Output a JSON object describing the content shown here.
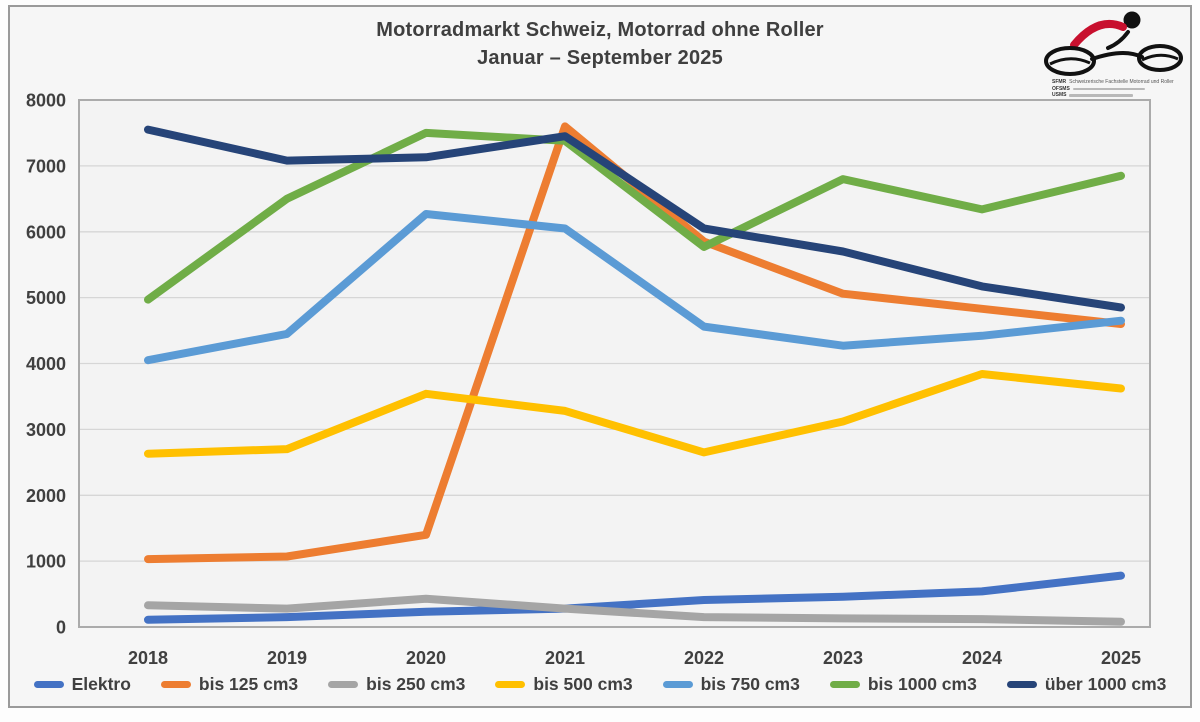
{
  "header": {
    "title_line1": "Motorradmarkt Schweiz, Motorrad ohne Roller",
    "title_line2": "Januar – September 2025"
  },
  "logo": {
    "acronym1": "SFMR",
    "text1": "Schweizerische Fachstelle Motorrad und Roller",
    "acronym2": "OFSMS",
    "acronym3": "USMS"
  },
  "chart_data": {
    "type": "line",
    "title": "Motorradmarkt Schweiz, Motorrad ohne Roller — Januar – September 2025",
    "categories": [
      "2018",
      "2019",
      "2020",
      "2021",
      "2022",
      "2023",
      "2024",
      "2025"
    ],
    "series": [
      {
        "name": "Elektro",
        "color": "#4472C4",
        "values": [
          110,
          150,
          230,
          280,
          410,
          460,
          540,
          780
        ]
      },
      {
        "name": "bis 125 cm3",
        "color": "#ED7D31",
        "values": [
          1030,
          1070,
          1400,
          7600,
          5850,
          5060,
          4830,
          4600
        ]
      },
      {
        "name": "bis 250 cm3",
        "color": "#A5A5A5",
        "values": [
          330,
          280,
          430,
          280,
          150,
          130,
          120,
          80
        ]
      },
      {
        "name": "bis 500 cm3",
        "color": "#FFC000",
        "values": [
          2630,
          2700,
          3540,
          3280,
          2650,
          3120,
          3840,
          3620
        ]
      },
      {
        "name": "bis 750 cm3",
        "color": "#5B9BD5",
        "values": [
          4050,
          4450,
          6270,
          6050,
          4560,
          4270,
          4420,
          4650
        ]
      },
      {
        "name": "bis 1000 cm3",
        "color": "#70AD47",
        "values": [
          4970,
          6500,
          7500,
          7380,
          5770,
          6800,
          6340,
          6850
        ]
      },
      {
        "name": "über 1000 cm3",
        "color": "#264478",
        "values": [
          7550,
          7080,
          7130,
          7450,
          6050,
          5700,
          5170,
          4850
        ]
      }
    ],
    "xlabel": "",
    "ylabel": "",
    "ylim": [
      0,
      8000
    ],
    "ytick_step": 1000,
    "grid": true,
    "legend_position": "bottom",
    "line_width": 8,
    "colors": {
      "grid": "#d6d6d6",
      "plot_border": "#ababab",
      "plot_fill": "#f3f3f3",
      "tick_text": "#404040"
    }
  }
}
